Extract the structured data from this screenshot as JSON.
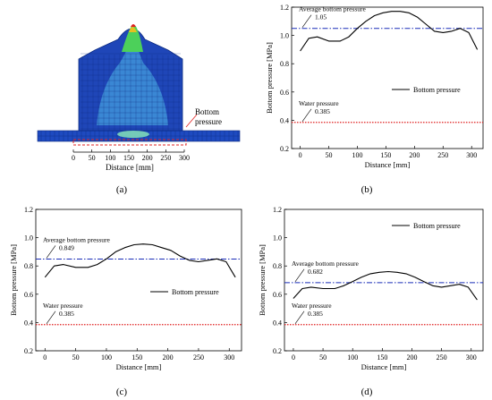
{
  "panels": [
    {
      "id": "a",
      "caption": "(a)",
      "type": "fem-model",
      "annotation": [
        "Bottom",
        "pressure"
      ],
      "xlabel": "Distance [mm]",
      "x_ticks": [
        0,
        50,
        100,
        150,
        200,
        250,
        300
      ],
      "colors": {
        "mesh_main": "#1a3fb0",
        "mesh_light": "#3aa0d8",
        "peak_green": "#4cd05a",
        "peak_red": "#e02020",
        "marker": "#e02020"
      }
    }
  ],
  "chart_data": [
    {
      "id": "b",
      "caption": "(b)",
      "type": "line",
      "xlabel": "Distance [mm]",
      "ylabel": "Bottom pressure [MPa]",
      "xlim": [
        -15,
        320
      ],
      "ylim": [
        0.2,
        1.2
      ],
      "x_ticks": [
        0,
        50,
        100,
        150,
        200,
        250,
        300
      ],
      "y_ticks": [
        "0.2",
        "0.4",
        "0.6",
        "0.8",
        "1.0",
        "1.2"
      ],
      "legend": {
        "label": "Bottom pressure",
        "placement": "right"
      },
      "series": [
        {
          "name": "Bottom pressure",
          "color": "#000000",
          "x": [
            0,
            15,
            30,
            50,
            70,
            85,
            100,
            115,
            130,
            145,
            160,
            175,
            190,
            205,
            220,
            235,
            250,
            265,
            280,
            295,
            310
          ],
          "y": [
            0.89,
            0.98,
            0.99,
            0.96,
            0.96,
            0.99,
            1.05,
            1.1,
            1.14,
            1.16,
            1.17,
            1.17,
            1.16,
            1.13,
            1.08,
            1.03,
            1.02,
            1.03,
            1.05,
            1.02,
            0.9
          ]
        }
      ],
      "reference_lines": [
        {
          "label": "Average bottom pressure",
          "value_label": "1.05",
          "y": 1.05,
          "style": "dashdot",
          "color": "#1a2db8"
        },
        {
          "label": "Water pressure",
          "value_label": "0.385",
          "y": 0.385,
          "style": "dotted",
          "color": "#e02020"
        }
      ]
    },
    {
      "id": "c",
      "caption": "(c)",
      "type": "line",
      "xlabel": "Distance [mm]",
      "ylabel": "Bottom pressure [MPa]",
      "xlim": [
        -15,
        320
      ],
      "ylim": [
        0.2,
        1.2
      ],
      "x_ticks": [
        0,
        50,
        100,
        150,
        200,
        250,
        300
      ],
      "y_ticks": [
        "0.2",
        "0.4",
        "0.6",
        "0.8",
        "1.0",
        "1.2"
      ],
      "legend": {
        "label": "Bottom pressure",
        "placement": "right"
      },
      "series": [
        {
          "name": "Bottom pressure",
          "color": "#000000",
          "x": [
            0,
            15,
            30,
            50,
            70,
            85,
            100,
            115,
            130,
            145,
            160,
            175,
            190,
            205,
            220,
            235,
            250,
            265,
            280,
            295,
            310
          ],
          "y": [
            0.72,
            0.8,
            0.81,
            0.79,
            0.79,
            0.81,
            0.85,
            0.9,
            0.93,
            0.95,
            0.955,
            0.95,
            0.93,
            0.91,
            0.87,
            0.84,
            0.83,
            0.84,
            0.85,
            0.83,
            0.72
          ]
        }
      ],
      "reference_lines": [
        {
          "label": "Average bottom pressure",
          "value_label": "0.849",
          "y": 0.849,
          "style": "dashdot",
          "color": "#1a2db8"
        },
        {
          "label": "Water pressure",
          "value_label": "0.385",
          "y": 0.385,
          "style": "dotted",
          "color": "#e02020"
        }
      ]
    },
    {
      "id": "d",
      "caption": "(d)",
      "type": "line",
      "xlabel": "Distance [mm]",
      "ylabel": "Bottom pressure [MPa]",
      "xlim": [
        -15,
        320
      ],
      "ylim": [
        0.2,
        1.2
      ],
      "x_ticks": [
        0,
        50,
        100,
        150,
        200,
        250,
        300
      ],
      "y_ticks": [
        "0.2",
        "0.4",
        "0.6",
        "0.8",
        "1.0",
        "1.2"
      ],
      "legend": {
        "label": "Bottom pressure",
        "placement": "top-right"
      },
      "series": [
        {
          "name": "Bottom pressure",
          "color": "#000000",
          "x": [
            0,
            15,
            30,
            50,
            70,
            85,
            100,
            115,
            130,
            145,
            160,
            175,
            190,
            205,
            220,
            235,
            250,
            265,
            280,
            295,
            310
          ],
          "y": [
            0.57,
            0.64,
            0.65,
            0.64,
            0.64,
            0.66,
            0.69,
            0.72,
            0.745,
            0.755,
            0.76,
            0.755,
            0.745,
            0.72,
            0.69,
            0.66,
            0.65,
            0.66,
            0.67,
            0.65,
            0.56
          ]
        }
      ],
      "reference_lines": [
        {
          "label": "Average bottom pressure",
          "value_label": "0.682",
          "y": 0.682,
          "style": "dashdot",
          "color": "#1a2db8"
        },
        {
          "label": "Water pressure",
          "value_label": "0.385",
          "y": 0.385,
          "style": "dotted",
          "color": "#e02020"
        }
      ]
    }
  ]
}
